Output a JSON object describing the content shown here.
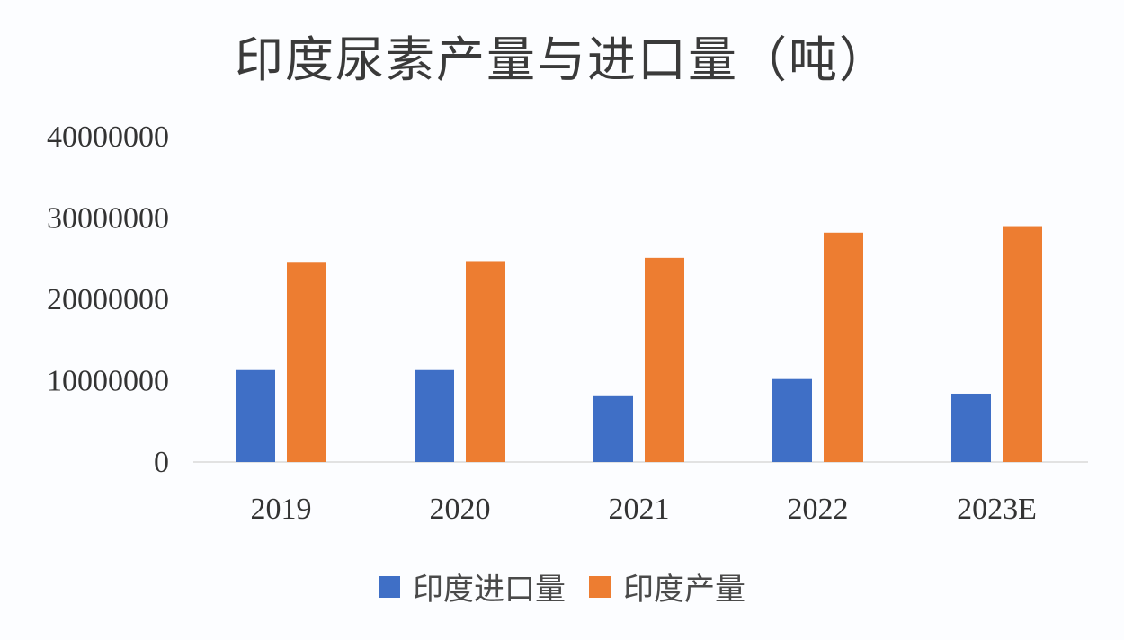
{
  "chart_data": {
    "type": "bar",
    "title": "印度尿素产量与进口量（吨）",
    "categories": [
      "2019",
      "2020",
      "2021",
      "2022",
      "2023E"
    ],
    "series": [
      {
        "name": "印度进口量",
        "color": "#3f6fc6",
        "values": [
          11300000,
          11300000,
          8200000,
          10200000,
          8400000
        ]
      },
      {
        "name": "印度产量",
        "color": "#ed7d31",
        "values": [
          24500000,
          24700000,
          25100000,
          28200000,
          29000000
        ]
      }
    ],
    "xlabel": "",
    "ylabel": "",
    "ylim": [
      0,
      40000000
    ],
    "yticks": [
      "0",
      "10000000",
      "20000000",
      "30000000",
      "40000000"
    ],
    "grid": false,
    "legend_position": "bottom"
  }
}
